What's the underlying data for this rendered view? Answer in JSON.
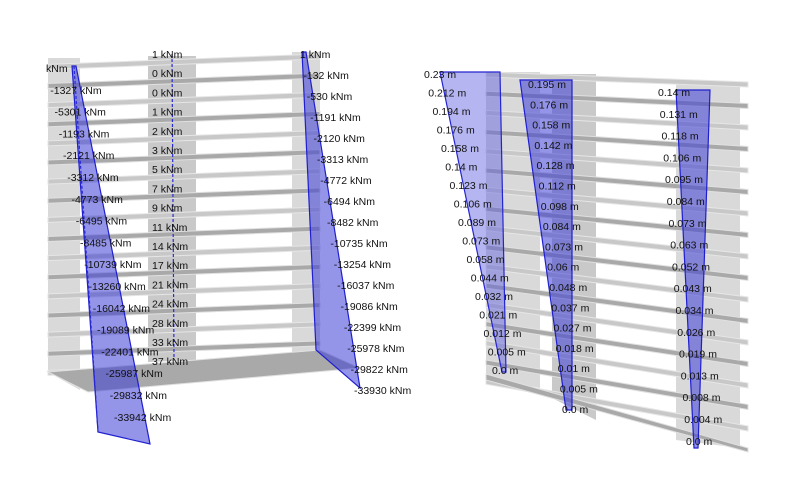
{
  "colors": {
    "diagram_fill": "#3d3dd6",
    "diagram_stroke": "#1f1fcf",
    "slab": "#c8c8c8",
    "background": "#ffffff"
  },
  "left_model": {
    "left_wall_labels": [
      "kNm",
      "-1327 kNm",
      "-5301 kNm",
      "-1193 kNm",
      "-2121 kNm",
      "-3312 kNm",
      "-4773 kNm",
      "-6495 kNm",
      "-8485 kNm",
      "-10739 kNm",
      "-13260 kNm",
      "-16042 kNm",
      "-19089 kNm",
      "-22401 kNm",
      "-25987 kNm",
      "-29832 kNm",
      "-33942 kNm"
    ],
    "core_labels": [
      "1 kNm",
      "0 kNm",
      "0 kNm",
      "1 kNm",
      "2 kNm",
      "3 kNm",
      "5 kNm",
      "7 kNm",
      "9 kNm",
      "11 kNm",
      "14 kNm",
      "17 kNm",
      "21 kNm",
      "24 kNm",
      "28 kNm",
      "33 kNm",
      "37 kNm"
    ],
    "right_wall_labels": [
      "1 kNm",
      "-132 kNm",
      "-530 kNm",
      "-1191 kNm",
      "-2120 kNm",
      "-3313 kNm",
      "-4772 kNm",
      "-6494 kNm",
      "-8482 kNm",
      "-10735 kNm",
      "-13254 kNm",
      "-16037 kNm",
      "-19086 kNm",
      "-22399 kNm",
      "-25978 kNm",
      "-29822 kNm",
      "-33930 kNm"
    ]
  },
  "right_model": {
    "left_wall_labels": [
      "0.23 m",
      "0.212 m",
      "0.194 m",
      "0.176 m",
      "0.158 m",
      "0.14 m",
      "0.123 m",
      "0.106 m",
      "0.089 m",
      "0.073 m",
      "0.058 m",
      "0.044 m",
      "0.032 m",
      "0.021 m",
      "0.012 m",
      "0.005 m",
      "0.0 m"
    ],
    "core_labels": [
      "0.195 m",
      "0.176 m",
      "0.158 m",
      "0.142 m",
      "0.128 m",
      "0.112 m",
      "0.098 m",
      "0.084 m",
      "0.073 m",
      "0.06 m",
      "0.048 m",
      "0.037 m",
      "0.027 m",
      "0.018 m",
      "0.01 m",
      "0.005 m",
      "0.0 m"
    ],
    "right_wall_labels": [
      "0.14 m",
      "0.131 m",
      "0.118 m",
      "0.106 m",
      "0.095 m",
      "0.084 m",
      "0.073 m",
      "0.063 m",
      "0.052 m",
      "0.043 m",
      "0.034 m",
      "0.026 m",
      "0.019 m",
      "0.013 m",
      "0.008 m",
      "0.004 m",
      "0.0 m"
    ]
  }
}
